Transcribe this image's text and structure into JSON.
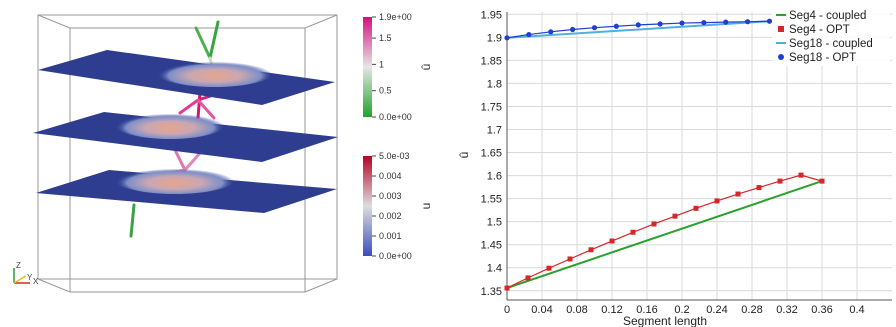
{
  "scene": {
    "axes_triad": {
      "z": "Z",
      "x": "X",
      "y": "Y"
    },
    "colorbar_uhat": {
      "title": "û",
      "ticks": [
        "1.9e+00",
        "1.5",
        "1",
        "0.5",
        "0.0e+00"
      ],
      "tick_values": [
        1.9,
        1.5,
        1.0,
        0.5,
        0.0
      ],
      "range": [
        0.0,
        1.9
      ],
      "colors": [
        "#1fa32a",
        "#e6e6e6",
        "#d1117f"
      ]
    },
    "colorbar_u": {
      "title": "u",
      "ticks": [
        "5.0e-03",
        "0.004",
        "0.003",
        "0.002",
        "0.001",
        "0.0e+00"
      ],
      "tick_values": [
        0.005,
        0.004,
        0.003,
        0.002,
        0.001,
        0.0
      ],
      "range": [
        0.0,
        0.005
      ],
      "colors": [
        "#3b4cc0",
        "#dddddd",
        "#b40426"
      ]
    }
  },
  "chart_data": {
    "type": "line",
    "title": "",
    "xlabel": "Segment length",
    "ylabel": "û",
    "xlim": [
      0,
      0.44
    ],
    "ylim": [
      1.33,
      1.955
    ],
    "x_ticks": [
      0,
      0.04,
      0.08,
      0.12,
      0.16,
      0.2,
      0.24,
      0.28,
      0.32,
      0.36,
      0.4
    ],
    "x_tick_labels": [
      "0",
      "0.04",
      "0.08",
      "0.12",
      "0.16",
      "0.2",
      "0.24",
      "0.28",
      "0.32",
      "0.36",
      "0.4"
    ],
    "y_ticks": [
      1.35,
      1.4,
      1.45,
      1.5,
      1.55,
      1.6,
      1.65,
      1.7,
      1.75,
      1.8,
      1.85,
      1.9,
      1.95
    ],
    "y_tick_labels": [
      "1.35",
      "1.4",
      "1.45",
      "1.5",
      "1.55",
      "1.6",
      "1.65",
      "1.7",
      "1.75",
      "1.8",
      "1.85",
      "1.9",
      "1.95"
    ],
    "grid": true,
    "legend_position": "top-right",
    "series": [
      {
        "name": "Seg4 - coupled",
        "color": "#2ca02c",
        "style": "line",
        "x": [
          0,
          0.36
        ],
        "y": [
          1.356,
          1.588
        ]
      },
      {
        "name": "Seg4 - OPT",
        "color": "#d62728",
        "style": "marker",
        "x": [
          0,
          0.024,
          0.048,
          0.072,
          0.096,
          0.12,
          0.144,
          0.168,
          0.192,
          0.216,
          0.24,
          0.264,
          0.288,
          0.312,
          0.336,
          0.36
        ],
        "y": [
          1.356,
          1.378,
          1.399,
          1.419,
          1.439,
          1.458,
          1.477,
          1.495,
          1.512,
          1.529,
          1.545,
          1.56,
          1.574,
          1.588,
          1.601,
          1.588
        ]
      },
      {
        "name": "Seg18 - coupled",
        "color": "#4fb0e0",
        "style": "line",
        "x": [
          0,
          0.3
        ],
        "y": [
          1.899,
          1.935
        ]
      },
      {
        "name": "Seg18 - OPT",
        "color": "#1f3fd0",
        "style": "marker",
        "x": [
          0,
          0.025,
          0.05,
          0.075,
          0.1,
          0.125,
          0.15,
          0.175,
          0.2,
          0.225,
          0.25,
          0.275,
          0.3
        ],
        "y": [
          1.899,
          1.906,
          1.912,
          1.917,
          1.921,
          1.924,
          1.927,
          1.929,
          1.931,
          1.932,
          1.933,
          1.934,
          1.935
        ]
      }
    ]
  }
}
